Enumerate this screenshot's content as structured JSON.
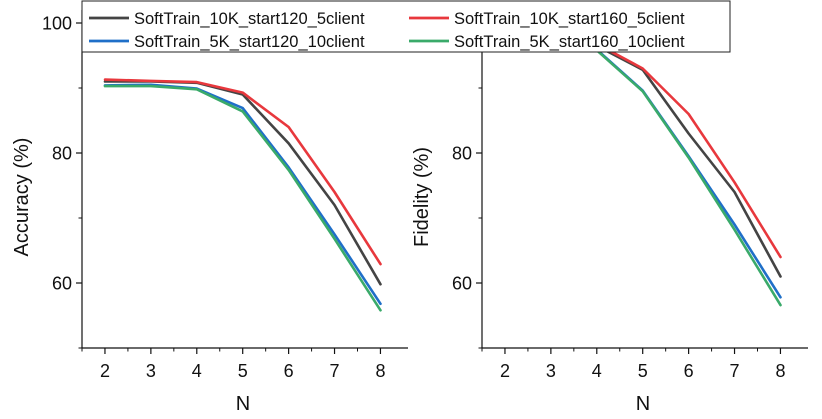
{
  "chart_data": [
    {
      "type": "line",
      "x": [
        2,
        3,
        4,
        5,
        6,
        7,
        8
      ],
      "xlabel": "N",
      "ylabel": "Accuracy (%)",
      "xlim": [
        1.5,
        8.6
      ],
      "ylim": [
        50,
        102
      ],
      "xticks": [
        2,
        3,
        4,
        5,
        6,
        7,
        8
      ],
      "yticks": [
        60,
        80,
        100
      ],
      "grid": false,
      "series": [
        {
          "name": "SoftTrain_10K_start120_5client",
          "color": "#444444",
          "values": [
            91.0,
            91.0,
            90.8,
            89.0,
            81.5,
            72.0,
            59.8
          ]
        },
        {
          "name": "SoftTrain_10K_start160_5client",
          "color": "#e8383d",
          "values": [
            91.3,
            91.1,
            90.9,
            89.3,
            84.0,
            74.0,
            62.9
          ]
        },
        {
          "name": "SoftTrain_5K_start120_10client",
          "color": "#1f6fc8",
          "values": [
            90.4,
            90.5,
            89.9,
            86.9,
            77.8,
            67.5,
            56.8
          ]
        },
        {
          "name": "SoftTrain_5K_start160_10client",
          "color": "#3aaa6a",
          "values": [
            90.3,
            90.3,
            89.8,
            86.4,
            77.4,
            66.8,
            55.8
          ]
        }
      ]
    },
    {
      "type": "line",
      "x": [
        2,
        3,
        4,
        5,
        6,
        7,
        8
      ],
      "xlabel": "N",
      "ylabel": "Fidelity (%)",
      "xlim": [
        1.5,
        8.6
      ],
      "ylim": [
        50,
        102
      ],
      "xticks": [
        2,
        3,
        4,
        5,
        6,
        7,
        8
      ],
      "yticks": [
        60,
        80,
        100
      ],
      "grid": false,
      "series": [
        {
          "name": "SoftTrain_10K_start120_5client",
          "color": "#444444",
          "values": [
            99.0,
            98.0,
            96.5,
            92.8,
            83.0,
            74.0,
            61.0
          ]
        },
        {
          "name": "SoftTrain_10K_start160_5client",
          "color": "#e8383d",
          "values": [
            99.2,
            98.3,
            96.8,
            93.0,
            86.0,
            75.5,
            64.0
          ]
        },
        {
          "name": "SoftTrain_5K_start120_10client",
          "color": "#1f6fc8",
          "values": [
            98.6,
            97.5,
            95.9,
            89.6,
            79.5,
            69.0,
            57.8
          ]
        },
        {
          "name": "SoftTrain_5K_start160_10client",
          "color": "#3aaa6a",
          "values": [
            98.5,
            97.4,
            95.8,
            89.5,
            79.3,
            68.2,
            56.6
          ]
        }
      ]
    }
  ],
  "legend": {
    "placement": "top",
    "items": [
      {
        "label": "SoftTrain_10K_start120_5client",
        "color": "#444444"
      },
      {
        "label": "SoftTrain_10K_start160_5client",
        "color": "#e8383d"
      },
      {
        "label": "SoftTrain_5K_start120_10client",
        "color": "#1f6fc8"
      },
      {
        "label": "SoftTrain_5K_start160_10client",
        "color": "#3aaa6a"
      }
    ]
  }
}
